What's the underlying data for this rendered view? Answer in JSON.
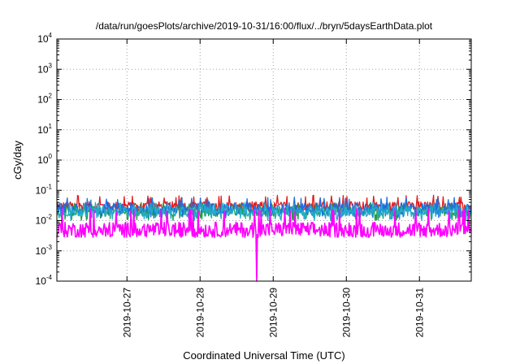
{
  "chart_data": {
    "type": "line",
    "title": "/data/run/goesPlots/archive/2019-10-31/16:00/flux/../bryn/5daysEarthData.plot",
    "xlabel": "Coordinated Universal Time (UTC)",
    "ylabel": "cGy/day",
    "y_scale": "log",
    "ylim": [
      0.0001,
      10000
    ],
    "xlim": [
      "2019-10-26 01:00",
      "2019-10-31 17:00"
    ],
    "grid": true,
    "x_ticks": [
      {
        "value": "2019-10-27",
        "label": "2019-10-27"
      },
      {
        "value": "2019-10-28",
        "label": "2019-10-28"
      },
      {
        "value": "2019-10-29",
        "label": "2019-10-29"
      },
      {
        "value": "2019-10-30",
        "label": "2019-10-30"
      },
      {
        "value": "2019-10-31",
        "label": "2019-10-31"
      }
    ],
    "y_ticks": [
      {
        "value": 0.0001,
        "base": "10",
        "exp": "-4"
      },
      {
        "value": 0.001,
        "base": "10",
        "exp": "-3"
      },
      {
        "value": 0.01,
        "base": "10",
        "exp": "-2"
      },
      {
        "value": 0.1,
        "base": "10",
        "exp": "-1"
      },
      {
        "value": 1,
        "base": "10",
        "exp": "0"
      },
      {
        "value": 10,
        "base": "10",
        "exp": "1"
      },
      {
        "value": 100,
        "base": "10",
        "exp": "2"
      },
      {
        "value": 1000,
        "base": "10",
        "exp": "3"
      },
      {
        "value": 10000,
        "base": "10",
        "exp": "4"
      }
    ],
    "series": [
      {
        "color": "#e41a1c",
        "typical": 0.03,
        "range": [
          0.02,
          0.07
        ]
      },
      {
        "color": "#1f9e48",
        "typical": 0.02,
        "range": [
          0.01,
          0.04
        ]
      },
      {
        "color": "#1e6fe0",
        "typical": 0.025,
        "range": [
          0.012,
          0.06
        ]
      },
      {
        "color": "#22aacc",
        "typical": 0.02,
        "range": [
          0.01,
          0.04
        ]
      },
      {
        "color": "#ff00ff",
        "typical": 0.005,
        "range": [
          0.003,
          0.025
        ],
        "min": 0.0001,
        "min_at": "2019-10-28 18:30"
      }
    ]
  }
}
